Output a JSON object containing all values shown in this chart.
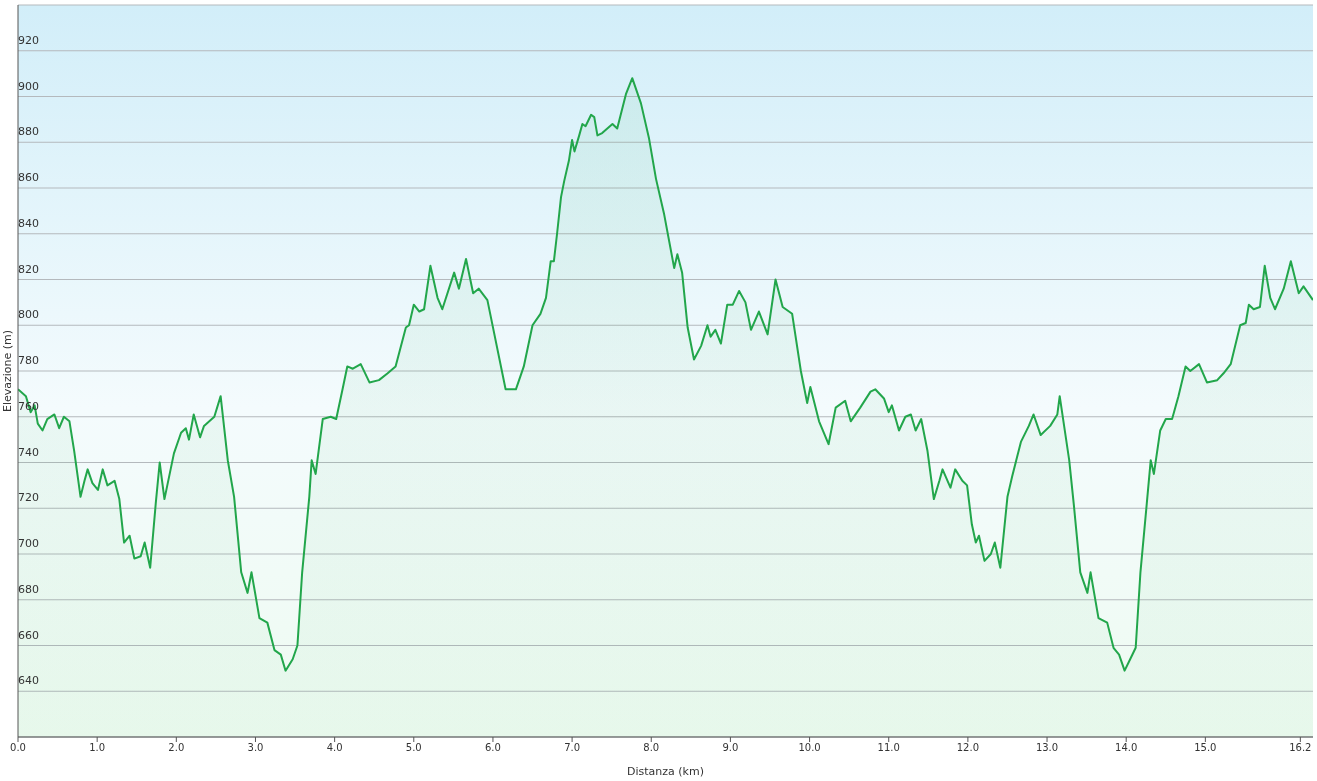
{
  "chart_data": {
    "type": "area",
    "xlabel": "Distanza  (km)",
    "ylabel": "Elevazione (m)",
    "grid": "y",
    "marker": "none",
    "line_style": "solid",
    "xlim": [
      0,
      16.36
    ],
    "ylim": [
      620,
      940
    ],
    "xticks": [
      {
        "value": 0,
        "label": "0.0"
      },
      {
        "value": 1,
        "label": "1.0"
      },
      {
        "value": 2,
        "label": "2.0"
      },
      {
        "value": 3,
        "label": "3.0"
      },
      {
        "value": 4,
        "label": "4.0"
      },
      {
        "value": 5,
        "label": "5.0"
      },
      {
        "value": 6,
        "label": "6.0"
      },
      {
        "value": 7,
        "label": "7.0"
      },
      {
        "value": 8,
        "label": "8.0"
      },
      {
        "value": 9,
        "label": "9.0"
      },
      {
        "value": 10,
        "label": "10.0"
      },
      {
        "value": 11,
        "label": "11.0"
      },
      {
        "value": 12,
        "label": "12.0"
      },
      {
        "value": 13,
        "label": "13.0"
      },
      {
        "value": 14,
        "label": "14.0"
      },
      {
        "value": 15,
        "label": "15.0"
      },
      {
        "value": 16.2,
        "label": "16.2"
      }
    ],
    "yticks": [
      640,
      660,
      680,
      700,
      720,
      740,
      760,
      780,
      800,
      820,
      840,
      860,
      880,
      900,
      920
    ],
    "x": [
      0,
      0.1,
      0.16,
      0.21,
      0.25,
      0.31,
      0.37,
      0.46,
      0.52,
      0.58,
      0.65,
      0.71,
      0.79,
      0.84,
      0.88,
      0.94,
      1.01,
      1.07,
      1.13,
      1.22,
      1.28,
      1.34,
      1.41,
      1.47,
      1.55,
      1.6,
      1.67,
      1.74,
      1.79,
      1.85,
      1.97,
      2.06,
      2.12,
      2.16,
      2.22,
      2.3,
      2.35,
      2.48,
      2.56,
      2.65,
      2.73,
      2.82,
      2.9,
      2.95,
      3.05,
      3.15,
      3.24,
      3.32,
      3.38,
      3.47,
      3.53,
      3.59,
      3.68,
      3.71,
      3.76,
      3.85,
      3.95,
      4.02,
      4.1,
      4.16,
      4.23,
      4.33,
      4.44,
      4.56,
      4.67,
      4.77,
      4.9,
      4.94,
      5.0,
      5.07,
      5.13,
      5.21,
      5.3,
      5.36,
      5.51,
      5.57,
      5.66,
      5.75,
      5.82,
      5.93,
      6.16,
      6.29,
      6.39,
      6.5,
      6.6,
      6.67,
      6.73,
      6.77,
      6.81,
      6.86,
      6.9,
      6.96,
      7.0,
      7.03,
      7.09,
      7.13,
      7.17,
      7.24,
      7.28,
      7.32,
      7.38,
      7.51,
      7.57,
      7.68,
      7.76,
      7.87,
      7.97,
      8.06,
      8.16,
      8.29,
      8.33,
      8.39,
      8.46,
      8.54,
      8.63,
      8.71,
      8.75,
      8.81,
      8.88,
      8.96,
      9.03,
      9.11,
      9.19,
      9.26,
      9.36,
      9.47,
      9.57,
      9.66,
      9.78,
      9.89,
      9.97,
      10.01,
      10.12,
      10.24,
      10.33,
      10.45,
      10.52,
      10.64,
      10.77,
      10.83,
      10.94,
      11.0,
      11.04,
      11.13,
      11.21,
      11.28,
      11.34,
      11.41,
      11.49,
      11.57,
      11.64,
      11.68,
      11.78,
      11.84,
      11.93,
      11.99,
      12.05,
      12.1,
      12.14,
      12.21,
      12.29,
      12.34,
      12.41,
      12.5,
      12.56,
      12.67,
      12.77,
      12.83,
      12.92,
      13.04,
      13.13,
      13.16,
      13.28,
      13.34,
      13.42,
      13.51,
      13.55,
      13.65,
      13.76,
      13.84,
      13.91,
      13.98,
      14.05,
      14.12,
      14.18,
      14.26,
      14.31,
      14.35,
      14.43,
      14.5,
      14.58,
      14.66,
      14.75,
      14.81,
      14.92,
      15.02,
      15.15,
      15.23,
      15.32,
      15.44,
      15.51,
      15.55,
      15.61,
      15.69,
      15.75,
      15.82,
      15.88,
      15.99,
      16.08,
      16.18,
      16.24,
      16.36
    ],
    "series": [
      {
        "color": "#22a64b",
        "values": [
          772,
          769,
          762,
          765,
          757,
          754,
          759,
          761,
          755,
          760,
          758,
          745,
          725,
          732,
          737,
          731,
          728,
          737,
          730,
          732,
          724,
          705,
          708,
          698,
          699,
          705,
          694,
          722,
          740,
          724,
          744,
          753,
          755,
          750,
          761,
          751,
          756,
          760,
          769,
          741,
          725,
          692,
          683,
          692,
          672,
          670,
          658,
          656,
          649,
          654,
          660,
          692,
          725,
          741,
          735,
          759,
          760,
          759,
          772,
          782,
          781,
          783,
          775,
          776,
          779,
          782,
          799,
          800,
          809,
          806,
          807,
          826,
          812,
          807,
          823,
          816,
          829,
          814,
          816,
          811,
          772,
          772,
          782,
          800,
          805,
          812,
          828,
          828,
          840,
          856,
          863,
          872,
          881,
          876,
          883,
          888,
          887,
          892,
          891,
          883,
          884,
          888,
          886,
          901,
          908,
          897,
          882,
          864,
          849,
          825,
          831,
          823,
          799,
          785,
          791,
          800,
          795,
          798,
          792,
          809,
          809,
          815,
          810,
          798,
          806,
          796,
          820,
          808,
          805,
          780,
          766,
          773,
          758,
          748,
          764,
          767,
          758,
          764,
          771,
          772,
          768,
          762,
          765,
          754,
          760,
          761,
          754,
          759,
          745,
          724,
          732,
          737,
          729,
          737,
          732,
          730,
          713,
          705,
          708,
          697,
          700,
          705,
          694,
          725,
          734,
          749,
          756,
          761,
          752,
          756,
          761,
          769,
          741,
          721,
          692,
          683,
          692,
          672,
          670,
          659,
          656,
          649,
          654,
          659,
          692,
          722,
          741,
          735,
          754,
          759,
          759,
          769,
          782,
          780,
          783,
          775,
          776,
          779,
          783,
          800,
          801,
          809,
          807,
          808,
          826,
          812,
          807,
          816,
          828,
          814,
          817,
          811
        ]
      }
    ]
  }
}
